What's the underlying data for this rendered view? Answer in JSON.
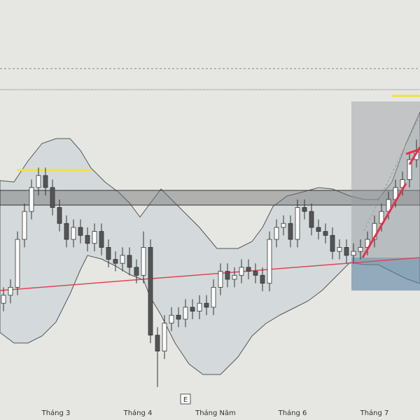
{
  "chart_data": {
    "type": "candlestick",
    "ylim": [
      0,
      100
    ],
    "open": [
      24,
      26,
      28,
      40,
      47,
      53,
      56,
      53,
      48,
      44,
      40,
      43,
      41,
      39,
      42,
      38,
      35,
      34,
      36,
      33,
      31,
      38,
      16,
      12,
      19,
      21,
      20,
      23,
      22,
      24,
      23,
      28,
      32,
      30,
      31,
      33,
      32,
      31,
      29,
      40,
      43,
      44,
      40,
      48,
      47,
      43,
      42,
      41,
      37,
      38,
      36,
      37,
      38,
      40,
      44,
      47,
      50,
      53,
      55,
      60
    ],
    "high": [
      28,
      30,
      42,
      49,
      55,
      58,
      58,
      55,
      50,
      46,
      45,
      45,
      43,
      44,
      44,
      40,
      37,
      38,
      38,
      35,
      42,
      40,
      18,
      21,
      23,
      23,
      25,
      25,
      26,
      26,
      30,
      34,
      34,
      33,
      35,
      35,
      34,
      33,
      42,
      45,
      46,
      46,
      50,
      50,
      49,
      45,
      44,
      43,
      40,
      40,
      39,
      40,
      42,
      46,
      49,
      52,
      55,
      57,
      62,
      65
    ],
    "low": [
      22,
      24,
      26,
      38,
      45,
      51,
      51,
      46,
      42,
      38,
      38,
      39,
      37,
      37,
      36,
      33,
      32,
      32,
      31,
      29,
      29,
      14,
      3,
      10,
      17,
      18,
      18,
      20,
      20,
      21,
      21,
      26,
      28,
      28,
      29,
      30,
      29,
      27,
      27,
      38,
      41,
      38,
      38,
      45,
      41,
      40,
      39,
      35,
      35,
      34,
      34,
      35,
      36,
      38,
      42,
      45,
      48,
      51,
      53,
      58
    ],
    "close": [
      26,
      28,
      40,
      47,
      53,
      56,
      53,
      48,
      44,
      40,
      43,
      41,
      39,
      42,
      38,
      35,
      34,
      36,
      33,
      31,
      38,
      16,
      12,
      19,
      21,
      20,
      23,
      22,
      24,
      23,
      28,
      32,
      30,
      31,
      33,
      32,
      31,
      29,
      40,
      43,
      44,
      40,
      48,
      47,
      43,
      42,
      41,
      37,
      38,
      36,
      37,
      38,
      40,
      44,
      47,
      50,
      53,
      55,
      60,
      62
    ],
    "up_color": "#ffffff",
    "down_color": "#555555",
    "x_axis_labels": [
      "Tháng 3",
      "Tháng 4",
      "Tháng Năm",
      "Tháng 6",
      "Tháng 7"
    ],
    "marker": "E"
  }
}
